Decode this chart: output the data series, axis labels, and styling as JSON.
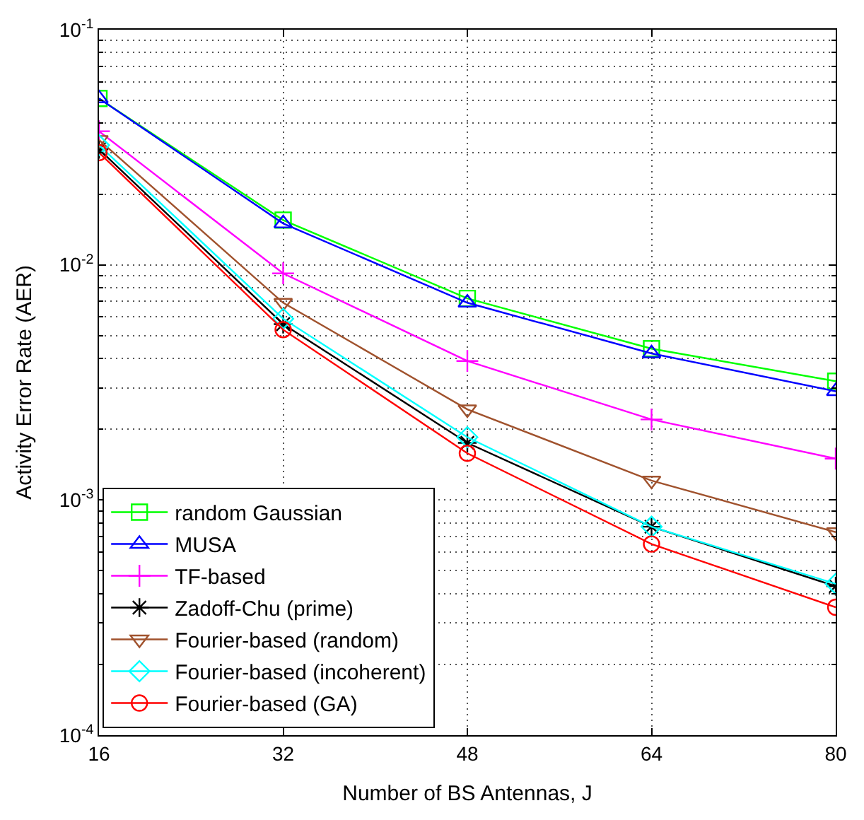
{
  "chart_data": {
    "type": "line",
    "xlabel": "Number of BS Antennas, J",
    "ylabel": "Activity Error Rate (AER)",
    "x": [
      16,
      32,
      48,
      64,
      80
    ],
    "log": "y",
    "xlim": [
      16,
      80
    ],
    "xticks": [
      16,
      32,
      48,
      64,
      80
    ],
    "ylim": [
      0.0001,
      0.1
    ],
    "yticks": [
      {
        "value": 0.0001,
        "label": "10$^{-4}$"
      },
      {
        "value": 0.001,
        "label": "10$^{-3}$"
      },
      {
        "value": 0.01,
        "label": "10$^{-2}$"
      },
      {
        "value": 0.1,
        "label": "10$^{-1}$"
      }
    ],
    "grid": true,
    "legend": "bottom left",
    "line_style": "solid",
    "series": [
      {
        "name": "random Gaussian",
        "color": "#00ff00",
        "marker": "square",
        "values": [
          0.051,
          0.0155,
          0.0072,
          0.0044,
          0.0032
        ]
      },
      {
        "name": "MUSA",
        "color": "#0000ff",
        "marker": "triangle",
        "values": [
          0.051,
          0.015,
          0.0069,
          0.0042,
          0.0029
        ]
      },
      {
        "name": "TF-based",
        "color": "#ff00ff",
        "marker": "cross",
        "values": [
          0.037,
          0.0092,
          0.0039,
          0.0022,
          0.0015
        ]
      },
      {
        "name": "Zadoff-Chu (prime)",
        "color": "#000000",
        "marker": "cross",
        "values": [
          0.031,
          0.0056,
          0.00175,
          0.00077,
          0.00043
        ]
      },
      {
        "name": "Fourier-based (random)",
        "color": "#a0522d",
        "marker": "triangle-down",
        "values": [
          0.034,
          0.0069,
          0.00243,
          0.00121,
          0.00073
        ]
      },
      {
        "name": "Fourier-based (incoherent)",
        "color": "#00ffff",
        "marker": "diamond",
        "values": [
          0.0323,
          0.0059,
          0.00185,
          0.00077,
          0.00044
        ]
      },
      {
        "name": "Fourier-based (GA)",
        "color": "#ff0000",
        "marker": "circle",
        "values": [
          0.03,
          0.0053,
          0.00158,
          0.00065,
          0.00035
        ]
      }
    ]
  }
}
